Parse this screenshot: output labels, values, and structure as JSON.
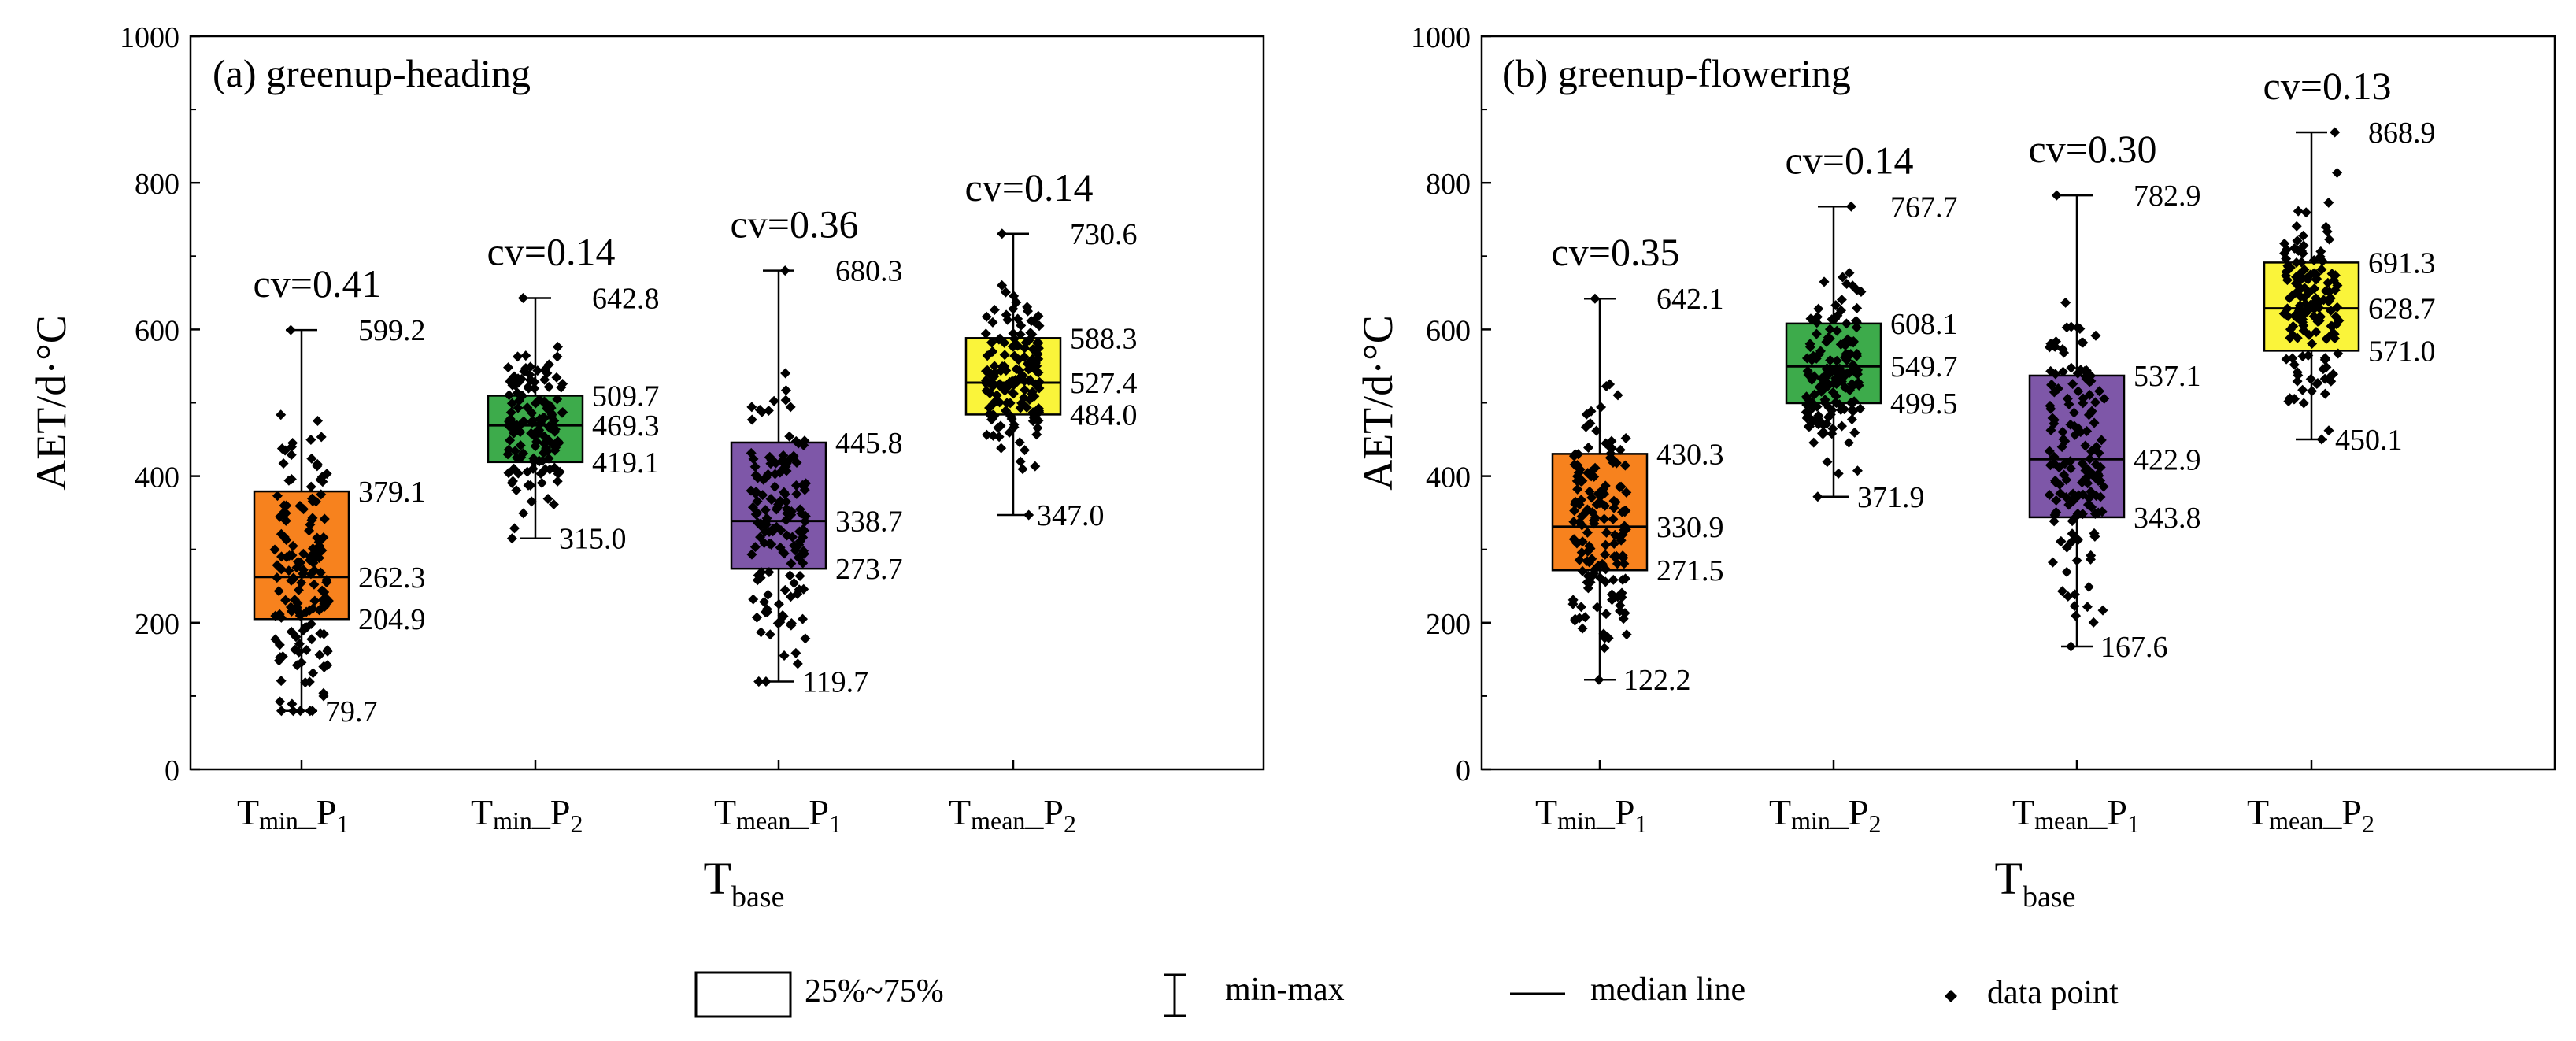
{
  "chart_data": [
    {
      "type": "box",
      "title": "(a) greenup-heading",
      "ylabel": "AET/d·°C",
      "xlabel": "Tbase",
      "xlabel_main": "T",
      "xlabel_sub": "base",
      "ylim": [
        0,
        1000
      ],
      "yticks": [
        "0",
        "200",
        "400",
        "600",
        "800",
        "1000"
      ],
      "categories": [
        {
          "label": "Tmin_P1",
          "base": "T",
          "sub": "min",
          "rest": "_P",
          "idx": "1"
        },
        {
          "label": "Tmin_P2",
          "base": "T",
          "sub": "min",
          "rest": "_P",
          "idx": "2"
        },
        {
          "label": "Tmean_P1",
          "base": "T",
          "sub": "mean",
          "rest": "_P",
          "idx": "1"
        },
        {
          "label": "Tmean_P2",
          "base": "T",
          "sub": "mean",
          "rest": "_P",
          "idx": "2"
        }
      ],
      "boxes": [
        {
          "min": 79.7,
          "q1": 204.9,
          "median": 262.3,
          "q3": 379.1,
          "max": 599.2,
          "min_label": "79.7",
          "q1_label": "204.9",
          "median_label": "262.3",
          "q3_label": "379.1",
          "max_label": "599.2",
          "cv": "cv=0.41",
          "color": "#F7821E"
        },
        {
          "min": 315.0,
          "q1": 419.1,
          "median": 469.3,
          "q3": 509.7,
          "max": 642.8,
          "min_label": "315.0",
          "q1_label": "419.1",
          "median_label": "469.3",
          "q3_label": "509.7",
          "max_label": "642.8",
          "cv": "cv=0.14",
          "color": "#3DAB4B"
        },
        {
          "min": 119.7,
          "q1": 273.7,
          "median": 338.7,
          "q3": 445.8,
          "max": 680.3,
          "min_label": "119.7",
          "q1_label": "273.7",
          "median_label": "338.7",
          "q3_label": "445.8",
          "max_label": "680.3",
          "cv": "cv=0.36",
          "color": "#7E57A8"
        },
        {
          "min": 347.0,
          "q1": 484.0,
          "median": 527.4,
          "q3": 588.3,
          "max": 730.6,
          "min_label": "347.0",
          "q1_label": "484.0",
          "median_label": "527.4",
          "q3_label": "588.3",
          "max_label": "730.6",
          "cv": "cv=0.14",
          "color": "#FAF43A"
        }
      ]
    },
    {
      "type": "box",
      "title": "(b) greenup-flowering",
      "ylabel": "AET/d·°C",
      "xlabel": "Tbase",
      "xlabel_main": "T",
      "xlabel_sub": "base",
      "ylim": [
        0,
        1000
      ],
      "yticks": [
        "0",
        "200",
        "400",
        "600",
        "800",
        "1000"
      ],
      "categories": [
        {
          "label": "Tmin_P1",
          "base": "T",
          "sub": "min",
          "rest": "_P",
          "idx": "1"
        },
        {
          "label": "Tmin_P2",
          "base": "T",
          "sub": "min",
          "rest": "_P",
          "idx": "2"
        },
        {
          "label": "Tmean_P1",
          "base": "T",
          "sub": "mean",
          "rest": "_P",
          "idx": "1"
        },
        {
          "label": "Tmean_P2",
          "base": "T",
          "sub": "mean",
          "rest": "_P",
          "idx": "2"
        }
      ],
      "boxes": [
        {
          "min": 122.2,
          "q1": 271.5,
          "median": 330.9,
          "q3": 430.3,
          "max": 642.1,
          "min_label": "122.2",
          "q1_label": "271.5",
          "median_label": "330.9",
          "q3_label": "430.3",
          "max_label": "642.1",
          "cv": "cv=0.35",
          "color": "#F7821E"
        },
        {
          "min": 371.9,
          "q1": 499.5,
          "median": 549.7,
          "q3": 608.1,
          "max": 767.7,
          "min_label": "371.9",
          "q1_label": "499.5",
          "median_label": "549.7",
          "q3_label": "608.1",
          "max_label": "767.7",
          "cv": "cv=0.14",
          "color": "#3DAB4B"
        },
        {
          "min": 167.6,
          "q1": 343.8,
          "median": 422.9,
          "q3": 537.1,
          "max": 782.9,
          "min_label": "167.6",
          "q1_label": "343.8",
          "median_label": "422.9",
          "q3_label": "537.1",
          "max_label": "782.9",
          "cv": "cv=0.30",
          "color": "#7E57A8"
        },
        {
          "min": 450.1,
          "q1": 571.0,
          "median": 628.7,
          "q3": 691.3,
          "max": 868.9,
          "min_label": "450.1",
          "q1_label": "571.0",
          "median_label": "628.7",
          "q3_label": "691.3",
          "max_label": "868.9",
          "cv": "cv=0.13",
          "color": "#FAF43A"
        }
      ]
    }
  ],
  "legend": [
    {
      "kind": "box",
      "label": "25%~75%"
    },
    {
      "kind": "whisker",
      "label": "min-max"
    },
    {
      "kind": "median",
      "label": "median line"
    },
    {
      "kind": "point",
      "label": "data point"
    }
  ]
}
